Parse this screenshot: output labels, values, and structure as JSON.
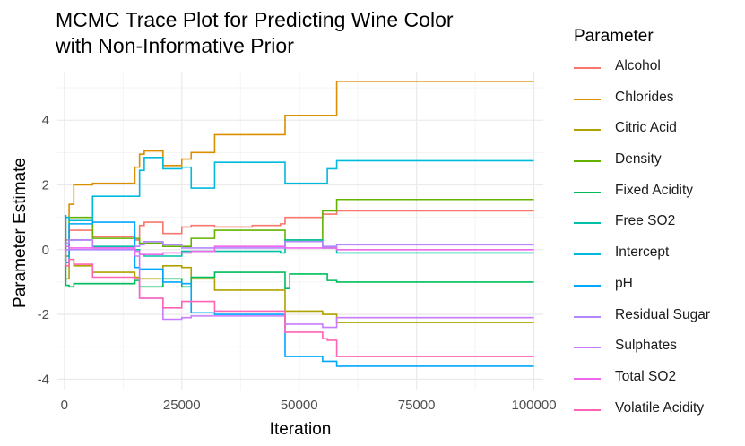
{
  "chart_data": {
    "type": "line",
    "title_lines": [
      "MCMC Trace Plot for Predicting Wine Color",
      "with Non-Informative Prior"
    ],
    "xlabel": "Iteration",
    "ylabel": "Parameter Estimate",
    "xlim": [
      -1500,
      102000
    ],
    "ylim": [
      -4.35,
      5.5
    ],
    "x_ticks": [
      0,
      25000,
      50000,
      75000,
      100000
    ],
    "y_ticks": [
      -4,
      -2,
      0,
      2,
      4
    ],
    "grid": true,
    "legend_title": "Parameter",
    "legend_position": "right",
    "series": [
      {
        "name": "Alcohol",
        "color": "#F8766D",
        "points": [
          [
            0,
            0.3
          ],
          [
            1000,
            0.6
          ],
          [
            6000,
            0.4
          ],
          [
            15000,
            0.3
          ],
          [
            16000,
            0.75
          ],
          [
            17000,
            0.85
          ],
          [
            21000,
            0.5
          ],
          [
            25000,
            0.7
          ],
          [
            27000,
            0.75
          ],
          [
            32000,
            0.7
          ],
          [
            40000,
            0.75
          ],
          [
            46000,
            0.8
          ],
          [
            47000,
            1.0
          ],
          [
            55000,
            1.1
          ],
          [
            58000,
            1.2
          ],
          [
            100000,
            1.2
          ]
        ]
      },
      {
        "name": "Chlorides",
        "color": "#DB8E00",
        "points": [
          [
            0,
            -0.5
          ],
          [
            300,
            1.0
          ],
          [
            1000,
            1.4
          ],
          [
            2000,
            2.0
          ],
          [
            6000,
            2.05
          ],
          [
            15000,
            2.55
          ],
          [
            16000,
            2.95
          ],
          [
            17000,
            3.05
          ],
          [
            21000,
            2.6
          ],
          [
            25000,
            2.8
          ],
          [
            27000,
            3.0
          ],
          [
            32000,
            3.55
          ],
          [
            46000,
            3.55
          ],
          [
            47000,
            4.15
          ],
          [
            55000,
            4.15
          ],
          [
            58000,
            5.2
          ],
          [
            100000,
            5.2
          ]
        ]
      },
      {
        "name": "Citric Acid",
        "color": "#AEA200",
        "points": [
          [
            0,
            -0.9
          ],
          [
            1000,
            -0.3
          ],
          [
            2000,
            -0.5
          ],
          [
            6000,
            -0.7
          ],
          [
            15000,
            -0.85
          ],
          [
            16000,
            -0.9
          ],
          [
            21000,
            -0.5
          ],
          [
            25000,
            -0.55
          ],
          [
            27000,
            -0.9
          ],
          [
            32000,
            -1.25
          ],
          [
            46000,
            -1.25
          ],
          [
            47000,
            -1.9
          ],
          [
            55000,
            -2.0
          ],
          [
            58000,
            -2.25
          ],
          [
            100000,
            -2.25
          ]
        ]
      },
      {
        "name": "Density",
        "color": "#64B200",
        "points": [
          [
            0,
            -0.2
          ],
          [
            1000,
            1.0
          ],
          [
            6000,
            0.35
          ],
          [
            15000,
            0.35
          ],
          [
            16000,
            0.2
          ],
          [
            21000,
            0.1
          ],
          [
            25000,
            0.1
          ],
          [
            27000,
            0.35
          ],
          [
            32000,
            0.6
          ],
          [
            46000,
            0.6
          ],
          [
            47000,
            0.3
          ],
          [
            55000,
            1.2
          ],
          [
            58000,
            1.55
          ],
          [
            100000,
            1.55
          ]
        ]
      },
      {
        "name": "Fixed Acidity",
        "color": "#00BD5C",
        "points": [
          [
            0,
            -0.3
          ],
          [
            300,
            -1.1
          ],
          [
            1000,
            -1.15
          ],
          [
            2000,
            -1.05
          ],
          [
            6000,
            -1.05
          ],
          [
            15000,
            -0.95
          ],
          [
            16000,
            -1.15
          ],
          [
            21000,
            -0.9
          ],
          [
            25000,
            -1.15
          ],
          [
            27000,
            -0.85
          ],
          [
            32000,
            -0.7
          ],
          [
            46000,
            -0.7
          ],
          [
            47000,
            -1.2
          ],
          [
            48000,
            -0.75
          ],
          [
            55000,
            -0.75
          ],
          [
            56000,
            -0.95
          ],
          [
            58000,
            -1.0
          ],
          [
            100000,
            -1.0
          ]
        ]
      },
      {
        "name": "Free SO2",
        "color": "#00C1A7",
        "points": [
          [
            0,
            0.2
          ],
          [
            1000,
            0.3
          ],
          [
            6000,
            0.1
          ],
          [
            15000,
            0.0
          ],
          [
            16000,
            -0.15
          ],
          [
            17000,
            -0.2
          ],
          [
            21000,
            -0.2
          ],
          [
            25000,
            -0.05
          ],
          [
            27000,
            -0.05
          ],
          [
            32000,
            -0.05
          ],
          [
            46000,
            -0.1
          ],
          [
            47000,
            0.3
          ],
          [
            55000,
            0.05
          ],
          [
            58000,
            -0.1
          ],
          [
            100000,
            -0.1
          ]
        ]
      },
      {
        "name": "Intercept",
        "color": "#00BADE",
        "points": [
          [
            0,
            1.0
          ],
          [
            1000,
            0.9
          ],
          [
            6000,
            1.65
          ],
          [
            15000,
            1.65
          ],
          [
            16000,
            2.45
          ],
          [
            17000,
            2.85
          ],
          [
            21000,
            2.5
          ],
          [
            25000,
            2.55
          ],
          [
            27000,
            1.9
          ],
          [
            32000,
            2.7
          ],
          [
            46000,
            2.7
          ],
          [
            47000,
            2.05
          ],
          [
            55000,
            2.05
          ],
          [
            56000,
            2.5
          ],
          [
            58000,
            2.75
          ],
          [
            100000,
            2.75
          ]
        ]
      },
      {
        "name": "pH",
        "color": "#00A6FF",
        "points": [
          [
            0,
            1.05
          ],
          [
            300,
            -0.4
          ],
          [
            1000,
            0.8
          ],
          [
            6000,
            0.85
          ],
          [
            15000,
            -0.55
          ],
          [
            16000,
            -0.6
          ],
          [
            21000,
            -1.0
          ],
          [
            25000,
            -1.05
          ],
          [
            27000,
            -1.95
          ],
          [
            32000,
            -2.0
          ],
          [
            46000,
            -2.0
          ],
          [
            47000,
            -3.3
          ],
          [
            55000,
            -3.45
          ],
          [
            58000,
            -3.6
          ],
          [
            100000,
            -3.6
          ]
        ]
      },
      {
        "name": "Residual Sugar",
        "color": "#B385FF",
        "points": [
          [
            0,
            0.0
          ],
          [
            1000,
            0.0
          ],
          [
            6000,
            0.0
          ],
          [
            15000,
            0.1
          ],
          [
            16000,
            0.15
          ],
          [
            17000,
            0.25
          ],
          [
            21000,
            0.15
          ],
          [
            25000,
            0.05
          ],
          [
            27000,
            0.05
          ],
          [
            32000,
            0.05
          ],
          [
            46000,
            0.05
          ],
          [
            47000,
            0.25
          ],
          [
            55000,
            0.1
          ],
          [
            58000,
            0.15
          ],
          [
            100000,
            0.15
          ]
        ]
      },
      {
        "name": "Sulphates",
        "color": "#C77CFF",
        "points": [
          [
            0,
            0.2
          ],
          [
            1000,
            0.3
          ],
          [
            6000,
            0.05
          ],
          [
            15000,
            -0.2
          ],
          [
            16000,
            -1.5
          ],
          [
            21000,
            -2.15
          ],
          [
            25000,
            -2.1
          ],
          [
            27000,
            -2.05
          ],
          [
            32000,
            -2.05
          ],
          [
            46000,
            -2.05
          ],
          [
            47000,
            -2.3
          ],
          [
            55000,
            -2.4
          ],
          [
            58000,
            -2.1
          ],
          [
            100000,
            -2.1
          ]
        ]
      },
      {
        "name": "Total SO2",
        "color": "#EF67EB",
        "points": [
          [
            0,
            0.1
          ],
          [
            1000,
            0.05
          ],
          [
            6000,
            0.05
          ],
          [
            15000,
            -0.05
          ],
          [
            16000,
            -0.15
          ],
          [
            21000,
            -0.1
          ],
          [
            25000,
            -0.1
          ],
          [
            27000,
            -0.05
          ],
          [
            32000,
            0.1
          ],
          [
            46000,
            0.1
          ],
          [
            47000,
            0.05
          ],
          [
            55000,
            0.05
          ],
          [
            58000,
            0.0
          ],
          [
            100000,
            0.0
          ]
        ]
      },
      {
        "name": "Volatile Acidity",
        "color": "#FF63B6",
        "points": [
          [
            0,
            0.0
          ],
          [
            300,
            -0.5
          ],
          [
            1000,
            -0.3
          ],
          [
            2000,
            -0.45
          ],
          [
            6000,
            -0.85
          ],
          [
            15000,
            -0.9
          ],
          [
            16000,
            -1.5
          ],
          [
            21000,
            -1.8
          ],
          [
            25000,
            -1.6
          ],
          [
            27000,
            -1.6
          ],
          [
            32000,
            -1.9
          ],
          [
            46000,
            -1.9
          ],
          [
            47000,
            -2.55
          ],
          [
            55000,
            -2.75
          ],
          [
            56000,
            -2.8
          ],
          [
            58000,
            -3.3
          ],
          [
            100000,
            -3.3
          ]
        ]
      }
    ]
  }
}
